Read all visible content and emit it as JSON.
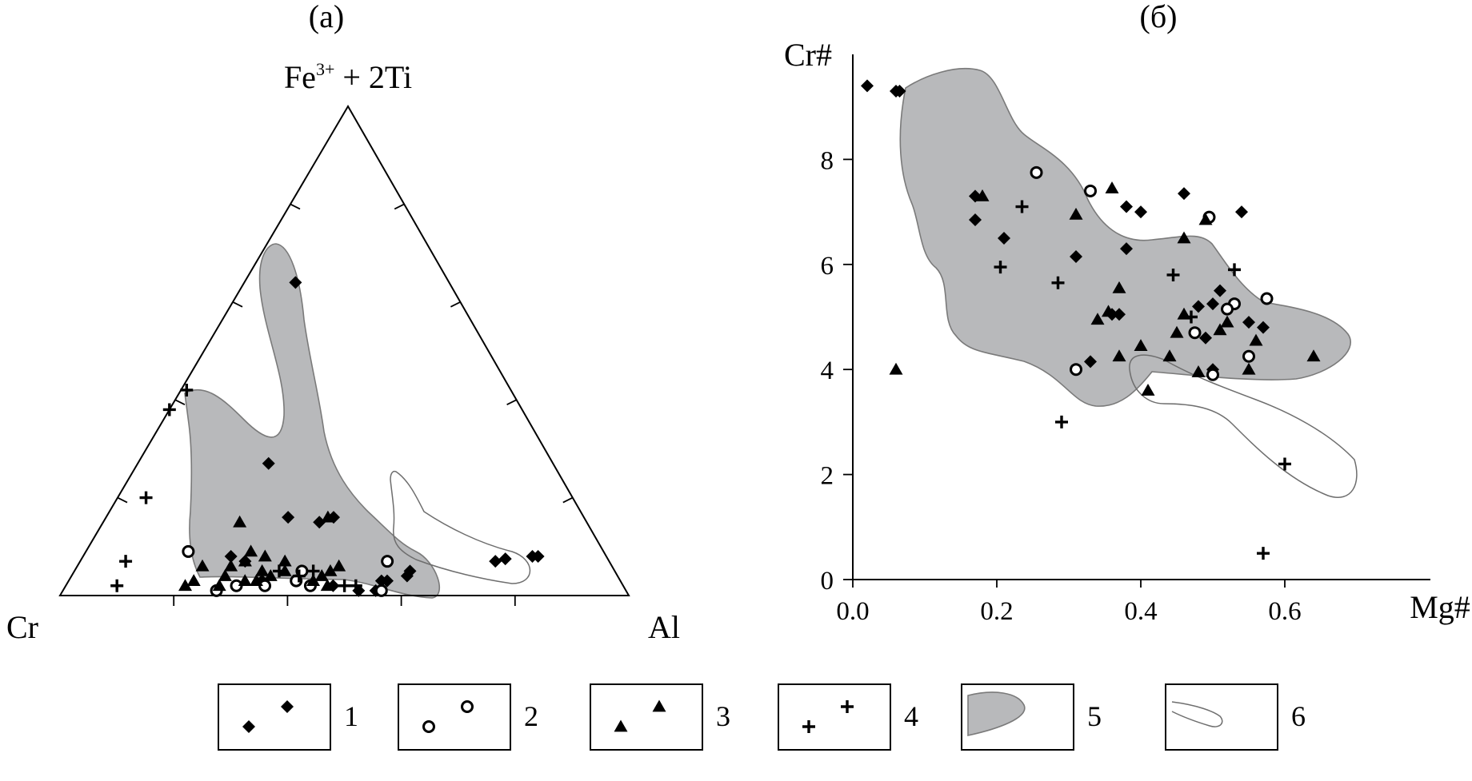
{
  "chart_data": [
    {
      "panel_label": "(а)",
      "type": "scatter",
      "subtype": "ternary",
      "apex_labels": {
        "top_main": "Fe",
        "top_sup": "3+",
        "top_rest": " + 2Ti",
        "left": "Cr",
        "right": "Al"
      },
      "series": [
        {
          "name": "1",
          "marker": "diamond",
          "points": [
            [
              0.08,
              0.12,
              0.8
            ],
            [
              0.08,
              0.13,
              0.79
            ],
            [
              0.075,
              0.18,
              0.745
            ],
            [
              0.07,
              0.2,
              0.73
            ],
            [
              0.27,
              0.5,
              0.23
            ],
            [
              0.64,
              0.27,
              0.09
            ],
            [
              0.16,
              0.44,
              0.4
            ],
            [
              0.15,
              0.47,
              0.38
            ],
            [
              0.16,
              0.52,
              0.32
            ],
            [
              0.05,
              0.36,
              0.59
            ],
            [
              0.04,
              0.37,
              0.59
            ],
            [
              0.03,
              0.41,
              0.56
            ],
            [
              0.03,
              0.42,
              0.55
            ],
            [
              0.01,
              0.44,
              0.55
            ],
            [
              0.01,
              0.47,
              0.52
            ],
            [
              0.02,
              0.51,
              0.47
            ],
            [
              0.02,
              0.55,
              0.43
            ],
            [
              0.08,
              0.66,
              0.26
            ],
            [
              0.07,
              0.64,
              0.29
            ],
            [
              0.03,
              0.63,
              0.34
            ]
          ]
        },
        {
          "name": "2",
          "marker": "circle",
          "points": [
            [
              0.01,
              0.43,
              0.56
            ],
            [
              0.07,
              0.39,
              0.54
            ],
            [
              0.05,
              0.55,
              0.4
            ],
            [
              0.02,
              0.55,
              0.43
            ],
            [
              0.02,
              0.63,
              0.35
            ],
            [
              0.03,
              0.57,
              0.4
            ],
            [
              0.02,
              0.68,
              0.3
            ],
            [
              0.01,
              0.72,
              0.27
            ],
            [
              0.09,
              0.73,
              0.18
            ]
          ]
        },
        {
          "name": "3",
          "marker": "triangle",
          "points": [
            [
              0.16,
              0.45,
              0.39
            ],
            [
              0.15,
              0.61,
              0.24
            ],
            [
              0.06,
              0.48,
              0.46
            ],
            [
              0.05,
              0.5,
              0.45
            ],
            [
              0.04,
              0.52,
              0.44
            ],
            [
              0.03,
              0.54,
              0.43
            ],
            [
              0.02,
              0.52,
              0.46
            ],
            [
              0.08,
              0.6,
              0.32
            ],
            [
              0.09,
              0.62,
              0.29
            ],
            [
              0.07,
              0.64,
              0.29
            ],
            [
              0.05,
              0.58,
              0.37
            ],
            [
              0.04,
              0.61,
              0.35
            ],
            [
              0.03,
              0.64,
              0.33
            ],
            [
              0.03,
              0.66,
              0.31
            ],
            [
              0.06,
              0.67,
              0.27
            ],
            [
              0.04,
              0.69,
              0.27
            ],
            [
              0.02,
              0.71,
              0.27
            ],
            [
              0.03,
              0.75,
              0.22
            ],
            [
              0.06,
              0.72,
              0.22
            ],
            [
              0.02,
              0.77,
              0.21
            ],
            [
              0.05,
              0.62,
              0.33
            ],
            [
              0.07,
              0.57,
              0.36
            ]
          ]
        },
        {
          "name": "4",
          "marker": "plus",
          "points": [
            [
              0.42,
              0.57,
              0.01
            ],
            [
              0.38,
              0.62,
              0.0
            ],
            [
              0.02,
              0.47,
              0.51
            ],
            [
              0.02,
              0.49,
              0.49
            ],
            [
              0.05,
              0.53,
              0.42
            ],
            [
              0.04,
              0.56,
              0.4
            ],
            [
              0.2,
              0.75,
              0.05
            ],
            [
              0.07,
              0.85,
              0.08
            ],
            [
              0.02,
              0.89,
              0.09
            ],
            [
              0.05,
              0.59,
              0.36
            ]
          ]
        }
      ],
      "fields": [
        {
          "name": "5",
          "style": "filled-grey"
        },
        {
          "name": "6",
          "style": "outline"
        }
      ]
    },
    {
      "panel_label": "(б)",
      "type": "scatter",
      "xlabel": "Mg#",
      "ylabel": "Cr#",
      "xlim": [
        0.0,
        0.7
      ],
      "ylim": [
        0,
        10
      ],
      "xticks": [
        "0.0",
        "0.2",
        "0.4",
        "0.6"
      ],
      "yticks": [
        "0",
        "2",
        "4",
        "6",
        "8"
      ],
      "series": [
        {
          "name": "1",
          "marker": "diamond",
          "points": [
            [
              0.02,
              9.4
            ],
            [
              0.06,
              9.3
            ],
            [
              0.065,
              9.3
            ],
            [
              0.17,
              7.3
            ],
            [
              0.17,
              6.85
            ],
            [
              0.21,
              6.5
            ],
            [
              0.31,
              6.15
            ],
            [
              0.38,
              7.1
            ],
            [
              0.4,
              7.0
            ],
            [
              0.38,
              6.3
            ],
            [
              0.46,
              7.35
            ],
            [
              0.54,
              7.0
            ],
            [
              0.33,
              4.15
            ],
            [
              0.36,
              5.05
            ],
            [
              0.37,
              5.05
            ],
            [
              0.48,
              5.2
            ],
            [
              0.5,
              5.25
            ],
            [
              0.51,
              5.5
            ],
            [
              0.49,
              4.6
            ],
            [
              0.55,
              4.9
            ],
            [
              0.57,
              4.8
            ],
            [
              0.5,
              4.0
            ]
          ]
        },
        {
          "name": "2",
          "marker": "circle",
          "points": [
            [
              0.255,
              7.75
            ],
            [
              0.33,
              7.4
            ],
            [
              0.495,
              6.9
            ],
            [
              0.575,
              5.35
            ],
            [
              0.53,
              5.25
            ],
            [
              0.52,
              5.15
            ],
            [
              0.475,
              4.7
            ],
            [
              0.55,
              4.25
            ],
            [
              0.31,
              4.0
            ],
            [
              0.5,
              3.9
            ]
          ]
        },
        {
          "name": "3",
          "marker": "triangle",
          "points": [
            [
              0.18,
              7.3
            ],
            [
              0.06,
              4.0
            ],
            [
              0.31,
              6.95
            ],
            [
              0.36,
              7.45
            ],
            [
              0.49,
              6.85
            ],
            [
              0.46,
              6.5
            ],
            [
              0.37,
              5.55
            ],
            [
              0.355,
              5.1
            ],
            [
              0.34,
              4.95
            ],
            [
              0.46,
              5.05
            ],
            [
              0.45,
              4.7
            ],
            [
              0.52,
              4.9
            ],
            [
              0.51,
              4.75
            ],
            [
              0.4,
              4.45
            ],
            [
              0.37,
              4.25
            ],
            [
              0.44,
              4.25
            ],
            [
              0.48,
              3.95
            ],
            [
              0.55,
              4.0
            ],
            [
              0.56,
              4.55
            ],
            [
              0.41,
              3.6
            ],
            [
              0.64,
              4.25
            ]
          ]
        },
        {
          "name": "4",
          "marker": "plus",
          "points": [
            [
              0.235,
              7.1
            ],
            [
              0.205,
              5.95
            ],
            [
              0.285,
              5.65
            ],
            [
              0.445,
              5.8
            ],
            [
              0.53,
              5.9
            ],
            [
              0.47,
              5.0
            ],
            [
              0.29,
              3.0
            ],
            [
              0.6,
              2.2
            ],
            [
              0.57,
              0.5
            ]
          ]
        }
      ],
      "fields": [
        {
          "name": "5",
          "style": "filled-grey"
        },
        {
          "name": "6",
          "style": "outline"
        }
      ]
    }
  ],
  "legend": [
    {
      "label": "1",
      "marker": "diamond"
    },
    {
      "label": "2",
      "marker": "circle"
    },
    {
      "label": "3",
      "marker": "triangle"
    },
    {
      "label": "4",
      "marker": "plus"
    },
    {
      "label": "5",
      "marker": "filled-field"
    },
    {
      "label": "6",
      "marker": "outline-field"
    }
  ],
  "colors": {
    "field_fill": "#b8b9bb",
    "field_stroke": "#7a7a7a",
    "marker": "#000000"
  }
}
